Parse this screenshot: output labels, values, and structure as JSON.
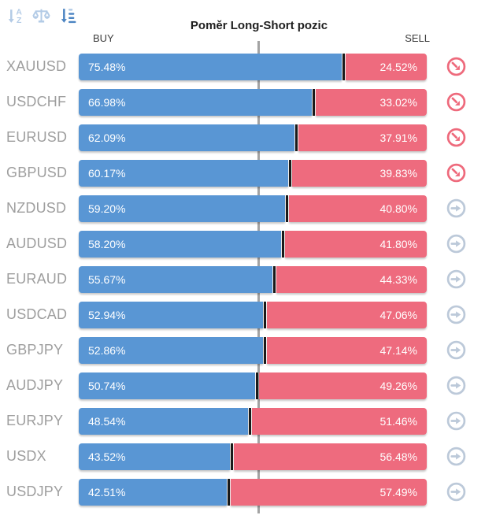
{
  "header": {
    "title": "Poměr Long-Short pozic",
    "buy_label": "BUY",
    "sell_label": "SELL"
  },
  "toolbar": {
    "sort_alphabetical_icon": "sort-alphabetical",
    "balance_scale_icon": "balance-scale",
    "sort_by_value_icon": "sort-by-value-active"
  },
  "colors": {
    "buy_bar": "#5996d4",
    "sell_bar": "#ee6b7e",
    "bar_divider": "#1a1a1a",
    "center_line": "#a3a3a3",
    "symbol_label": "#9e9e9e",
    "alert_icon": "#ee6a7c",
    "neutral_icon": "#bcc9d9",
    "active_sort_icon": "#4b84c2",
    "inactive_sort_icon": "#b3cbe6"
  },
  "chart_data": {
    "type": "bar",
    "stacked": true,
    "orientation": "horizontal",
    "title": "Poměr Long-Short pozic",
    "categories": [
      "XAUUSD",
      "USDCHF",
      "EURUSD",
      "GBPUSD",
      "NZDUSD",
      "AUDUSD",
      "EURAUD",
      "USDCAD",
      "GBPJPY",
      "AUDJPY",
      "EURJPY",
      "USDX",
      "USDJPY"
    ],
    "series": [
      {
        "name": "BUY",
        "color": "#5996d4",
        "values": [
          75.48,
          66.98,
          62.09,
          60.17,
          59.2,
          58.2,
          55.67,
          52.94,
          52.86,
          50.74,
          48.54,
          43.52,
          42.51
        ]
      },
      {
        "name": "SELL",
        "color": "#ee6b7e",
        "values": [
          24.52,
          33.02,
          37.91,
          39.83,
          40.8,
          41.8,
          44.33,
          47.06,
          47.14,
          49.26,
          51.46,
          56.48,
          57.49
        ]
      }
    ],
    "xlim": [
      0,
      100
    ],
    "value_suffix": "%",
    "center_marker": 50,
    "legend_position": "top",
    "grid": false
  },
  "rows": [
    {
      "symbol": "XAUUSD",
      "buy": "75.48%",
      "sell": "24.52%",
      "buy_pct": 75.48,
      "status": "alert"
    },
    {
      "symbol": "USDCHF",
      "buy": "66.98%",
      "sell": "33.02%",
      "buy_pct": 66.98,
      "status": "alert"
    },
    {
      "symbol": "EURUSD",
      "buy": "62.09%",
      "sell": "37.91%",
      "buy_pct": 62.09,
      "status": "alert"
    },
    {
      "symbol": "GBPUSD",
      "buy": "60.17%",
      "sell": "39.83%",
      "buy_pct": 60.17,
      "status": "alert"
    },
    {
      "symbol": "NZDUSD",
      "buy": "59.20%",
      "sell": "40.80%",
      "buy_pct": 59.2,
      "status": "neutral"
    },
    {
      "symbol": "AUDUSD",
      "buy": "58.20%",
      "sell": "41.80%",
      "buy_pct": 58.2,
      "status": "neutral"
    },
    {
      "symbol": "EURAUD",
      "buy": "55.67%",
      "sell": "44.33%",
      "buy_pct": 55.67,
      "status": "neutral"
    },
    {
      "symbol": "USDCAD",
      "buy": "52.94%",
      "sell": "47.06%",
      "buy_pct": 52.94,
      "status": "neutral"
    },
    {
      "symbol": "GBPJPY",
      "buy": "52.86%",
      "sell": "47.14%",
      "buy_pct": 52.86,
      "status": "neutral"
    },
    {
      "symbol": "AUDJPY",
      "buy": "50.74%",
      "sell": "49.26%",
      "buy_pct": 50.74,
      "status": "neutral"
    },
    {
      "symbol": "EURJPY",
      "buy": "48.54%",
      "sell": "51.46%",
      "buy_pct": 48.54,
      "status": "neutral"
    },
    {
      "symbol": "USDX",
      "buy": "43.52%",
      "sell": "56.48%",
      "buy_pct": 43.52,
      "status": "neutral"
    },
    {
      "symbol": "USDJPY",
      "buy": "42.51%",
      "sell": "57.49%",
      "buy_pct": 42.51,
      "status": "neutral"
    }
  ]
}
